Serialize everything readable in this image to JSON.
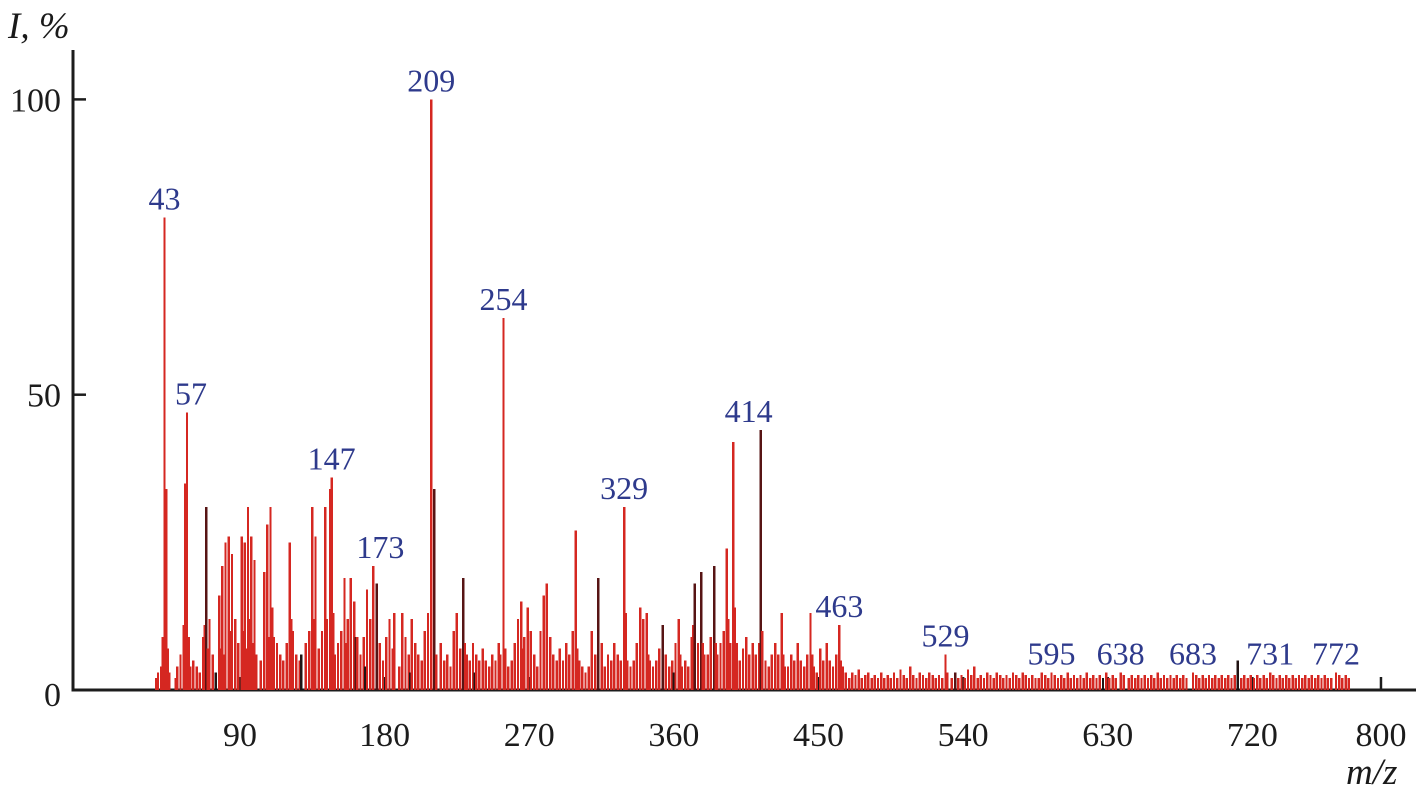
{
  "chart_data": {
    "type": "bar",
    "title": "",
    "xlabel": "m/z",
    "ylabel": "I, %",
    "xlim": [
      0,
      800
    ],
    "ylim": [
      0,
      100
    ],
    "grid": false,
    "x_ticks": [
      90,
      180,
      270,
      360,
      450,
      540,
      630,
      720,
      800
    ],
    "y_ticks": [
      0,
      50,
      100
    ],
    "labeled_peaks": [
      {
        "mz": 43,
        "label": "43"
      },
      {
        "mz": 57,
        "label": "57"
      },
      {
        "mz": 147,
        "label": "147"
      },
      {
        "mz": 173,
        "label": "173"
      },
      {
        "mz": 209,
        "label": "209"
      },
      {
        "mz": 254,
        "label": "254"
      },
      {
        "mz": 329,
        "label": "329"
      },
      {
        "mz": 414,
        "label": "414"
      },
      {
        "mz": 463,
        "label": "463"
      },
      {
        "mz": 529,
        "label": "529"
      },
      {
        "mz": 595,
        "label": "595"
      },
      {
        "mz": 638,
        "label": "638"
      },
      {
        "mz": 683,
        "label": "683"
      },
      {
        "mz": 731,
        "label": "731"
      },
      {
        "mz": 772,
        "label": "772"
      }
    ],
    "peaks": [
      [
        38,
        2
      ],
      [
        39,
        3
      ],
      [
        41,
        4
      ],
      [
        42,
        9
      ],
      [
        43,
        80
      ],
      [
        44,
        34
      ],
      [
        45,
        7
      ],
      [
        46,
        3
      ],
      [
        50,
        2
      ],
      [
        51,
        4
      ],
      [
        53,
        6
      ],
      [
        55,
        11
      ],
      [
        56,
        35
      ],
      [
        57,
        47
      ],
      [
        58,
        9
      ],
      [
        59,
        4
      ],
      [
        61,
        5
      ],
      [
        63,
        4
      ],
      [
        65,
        3
      ],
      [
        67,
        9
      ],
      [
        68,
        11
      ],
      [
        69,
        31,
        "d"
      ],
      [
        70,
        7
      ],
      [
        71,
        12
      ],
      [
        73,
        6
      ],
      [
        75,
        3,
        "k"
      ],
      [
        77,
        16
      ],
      [
        78,
        7
      ],
      [
        79,
        21
      ],
      [
        80,
        6
      ],
      [
        81,
        25
      ],
      [
        83,
        26
      ],
      [
        84,
        10
      ],
      [
        85,
        23
      ],
      [
        87,
        12
      ],
      [
        89,
        8
      ],
      [
        91,
        26
      ],
      [
        92,
        10
      ],
      [
        93,
        25
      ],
      [
        94,
        7
      ],
      [
        95,
        31
      ],
      [
        96,
        12
      ],
      [
        97,
        26
      ],
      [
        98,
        8
      ],
      [
        99,
        22
      ],
      [
        100,
        6
      ],
      [
        103,
        5
      ],
      [
        105,
        20
      ],
      [
        107,
        28
      ],
      [
        108,
        9
      ],
      [
        109,
        31
      ],
      [
        110,
        14
      ],
      [
        111,
        9
      ],
      [
        113,
        8
      ],
      [
        115,
        6
      ],
      [
        117,
        5
      ],
      [
        119,
        8
      ],
      [
        121,
        25
      ],
      [
        122,
        12
      ],
      [
        123,
        10
      ],
      [
        125,
        6
      ],
      [
        127,
        5
      ],
      [
        128,
        6,
        "k"
      ],
      [
        131,
        8
      ],
      [
        133,
        10
      ],
      [
        135,
        31
      ],
      [
        136,
        12
      ],
      [
        137,
        26
      ],
      [
        139,
        7
      ],
      [
        141,
        10
      ],
      [
        143,
        31
      ],
      [
        144,
        12
      ],
      [
        146,
        34
      ],
      [
        147,
        36
      ],
      [
        148,
        13
      ],
      [
        149,
        6
      ],
      [
        151,
        8
      ],
      [
        153,
        10
      ],
      [
        155,
        19
      ],
      [
        156,
        8
      ],
      [
        157,
        12
      ],
      [
        159,
        19
      ],
      [
        161,
        15
      ],
      [
        162,
        9,
        "d"
      ],
      [
        163,
        9
      ],
      [
        165,
        6
      ],
      [
        167,
        9
      ],
      [
        168,
        4,
        "k"
      ],
      [
        169,
        17
      ],
      [
        171,
        12
      ],
      [
        173,
        21
      ],
      [
        175,
        18,
        "d"
      ],
      [
        177,
        8
      ],
      [
        179,
        5
      ],
      [
        181,
        9
      ],
      [
        183,
        12
      ],
      [
        185,
        7
      ],
      [
        186,
        13
      ],
      [
        189,
        4
      ],
      [
        191,
        13
      ],
      [
        193,
        9
      ],
      [
        195,
        6
      ],
      [
        196,
        3,
        "k"
      ],
      [
        197,
        12
      ],
      [
        199,
        8
      ],
      [
        201,
        6
      ],
      [
        203,
        5
      ],
      [
        205,
        10
      ],
      [
        207,
        13
      ],
      [
        209,
        100
      ],
      [
        211,
        34,
        "d"
      ],
      [
        212,
        6
      ],
      [
        215,
        8
      ],
      [
        217,
        5
      ],
      [
        219,
        6
      ],
      [
        221,
        4
      ],
      [
        223,
        10
      ],
      [
        225,
        13
      ],
      [
        227,
        7
      ],
      [
        229,
        19,
        "d"
      ],
      [
        230,
        8
      ],
      [
        231,
        6
      ],
      [
        233,
        5
      ],
      [
        235,
        8
      ],
      [
        236,
        3,
        "k"
      ],
      [
        237,
        6
      ],
      [
        239,
        5
      ],
      [
        241,
        7
      ],
      [
        243,
        5
      ],
      [
        245,
        4
      ],
      [
        247,
        6
      ],
      [
        249,
        5
      ],
      [
        251,
        8
      ],
      [
        252,
        6
      ],
      [
        254,
        63
      ],
      [
        255,
        7
      ],
      [
        257,
        4
      ],
      [
        259,
        5
      ],
      [
        261,
        8
      ],
      [
        263,
        12
      ],
      [
        265,
        15
      ],
      [
        266,
        7
      ],
      [
        267,
        9
      ],
      [
        269,
        14
      ],
      [
        271,
        10
      ],
      [
        273,
        6
      ],
      [
        275,
        4
      ],
      [
        277,
        10
      ],
      [
        279,
        16
      ],
      [
        281,
        18
      ],
      [
        283,
        9
      ],
      [
        285,
        6
      ],
      [
        287,
        5
      ],
      [
        289,
        7
      ],
      [
        291,
        5
      ],
      [
        293,
        8
      ],
      [
        295,
        6
      ],
      [
        297,
        10
      ],
      [
        299,
        27
      ],
      [
        300,
        7
      ],
      [
        301,
        5
      ],
      [
        303,
        4
      ],
      [
        305,
        3
      ],
      [
        307,
        4
      ],
      [
        309,
        10
      ],
      [
        311,
        6
      ],
      [
        313,
        19,
        "d"
      ],
      [
        315,
        8
      ],
      [
        317,
        4
      ],
      [
        319,
        6
      ],
      [
        321,
        5
      ],
      [
        323,
        8
      ],
      [
        325,
        6
      ],
      [
        327,
        5
      ],
      [
        329,
        31
      ],
      [
        330,
        13
      ],
      [
        331,
        5
      ],
      [
        333,
        4
      ],
      [
        335,
        5
      ],
      [
        337,
        8
      ],
      [
        339,
        14
      ],
      [
        341,
        12
      ],
      [
        343,
        13
      ],
      [
        344,
        6
      ],
      [
        345,
        5
      ],
      [
        347,
        4
      ],
      [
        349,
        5
      ],
      [
        351,
        7
      ],
      [
        353,
        11,
        "d"
      ],
      [
        355,
        6
      ],
      [
        357,
        4
      ],
      [
        359,
        5
      ],
      [
        360,
        3,
        "k"
      ],
      [
        361,
        8
      ],
      [
        363,
        12
      ],
      [
        364,
        6
      ],
      [
        365,
        4
      ],
      [
        367,
        5
      ],
      [
        369,
        4
      ],
      [
        371,
        9
      ],
      [
        372,
        11
      ],
      [
        373,
        18,
        "d"
      ],
      [
        375,
        8
      ],
      [
        377,
        20,
        "d"
      ],
      [
        378,
        8
      ],
      [
        379,
        6
      ],
      [
        381,
        6
      ],
      [
        383,
        9
      ],
      [
        385,
        21,
        "d"
      ],
      [
        386,
        8
      ],
      [
        387,
        6
      ],
      [
        389,
        8
      ],
      [
        391,
        10
      ],
      [
        393,
        24
      ],
      [
        394,
        12
      ],
      [
        395,
        8
      ],
      [
        397,
        42
      ],
      [
        398,
        14
      ],
      [
        399,
        8
      ],
      [
        401,
        5
      ],
      [
        403,
        7
      ],
      [
        405,
        9
      ],
      [
        407,
        6
      ],
      [
        409,
        8
      ],
      [
        411,
        6
      ],
      [
        413,
        8
      ],
      [
        414,
        44,
        "d"
      ],
      [
        415,
        10
      ],
      [
        417,
        5
      ],
      [
        419,
        4
      ],
      [
        421,
        6
      ],
      [
        423,
        8
      ],
      [
        425,
        6
      ],
      [
        427,
        13
      ],
      [
        428,
        6
      ],
      [
        429,
        4
      ],
      [
        431,
        4
      ],
      [
        433,
        6
      ],
      [
        435,
        5
      ],
      [
        437,
        8
      ],
      [
        439,
        5
      ],
      [
        441,
        4
      ],
      [
        443,
        6
      ],
      [
        445,
        13
      ],
      [
        446,
        6
      ],
      [
        447,
        4
      ],
      [
        449,
        3
      ],
      [
        451,
        7
      ],
      [
        453,
        5
      ],
      [
        455,
        8
      ],
      [
        457,
        5
      ],
      [
        459,
        4
      ],
      [
        461,
        6
      ],
      [
        463,
        11
      ],
      [
        464,
        5
      ],
      [
        465,
        4
      ],
      [
        467,
        3
      ],
      [
        469,
        2
      ],
      [
        471,
        3
      ],
      [
        473,
        2.5
      ],
      [
        475,
        3.5
      ],
      [
        477,
        2
      ],
      [
        479,
        2.5
      ],
      [
        481,
        3
      ],
      [
        483,
        2
      ],
      [
        485,
        2.5
      ],
      [
        487,
        2
      ],
      [
        489,
        3
      ],
      [
        491,
        2
      ],
      [
        493,
        2.5
      ],
      [
        495,
        2
      ],
      [
        497,
        3
      ],
      [
        499,
        2
      ],
      [
        501,
        3.5
      ],
      [
        503,
        2.5
      ],
      [
        505,
        2
      ],
      [
        507,
        4
      ],
      [
        509,
        2.5
      ],
      [
        511,
        2
      ],
      [
        513,
        3
      ],
      [
        515,
        2.5
      ],
      [
        517,
        2
      ],
      [
        519,
        3
      ],
      [
        521,
        2.5
      ],
      [
        523,
        2
      ],
      [
        525,
        2.5
      ],
      [
        527,
        2
      ],
      [
        529,
        6
      ],
      [
        530,
        3
      ],
      [
        533,
        2
      ],
      [
        535,
        3,
        "d"
      ],
      [
        537,
        2
      ],
      [
        539,
        2.5
      ],
      [
        541,
        2
      ],
      [
        543,
        3.5
      ],
      [
        545,
        2.5
      ],
      [
        547,
        4
      ],
      [
        549,
        2
      ],
      [
        551,
        2.5
      ],
      [
        553,
        2
      ],
      [
        555,
        3
      ],
      [
        557,
        2.5
      ],
      [
        559,
        2
      ],
      [
        561,
        3
      ],
      [
        563,
        2.5
      ],
      [
        565,
        2
      ],
      [
        567,
        2.5
      ],
      [
        569,
        2
      ],
      [
        571,
        3
      ],
      [
        573,
        2.5
      ],
      [
        575,
        2
      ],
      [
        577,
        3
      ],
      [
        579,
        2.5
      ],
      [
        581,
        2
      ],
      [
        583,
        2.5
      ],
      [
        585,
        2
      ],
      [
        587,
        2
      ],
      [
        589,
        3
      ],
      [
        591,
        2.5
      ],
      [
        593,
        2
      ],
      [
        595,
        3
      ],
      [
        597,
        2.5
      ],
      [
        599,
        2
      ],
      [
        601,
        2.5
      ],
      [
        603,
        2
      ],
      [
        605,
        3
      ],
      [
        607,
        2
      ],
      [
        609,
        2.5
      ],
      [
        611,
        2
      ],
      [
        613,
        2.5
      ],
      [
        615,
        2
      ],
      [
        617,
        3
      ],
      [
        619,
        2
      ],
      [
        621,
        2.5
      ],
      [
        623,
        2
      ],
      [
        625,
        2.5
      ],
      [
        627,
        2,
        "k"
      ],
      [
        629,
        3
      ],
      [
        631,
        2
      ],
      [
        633,
        2.5
      ],
      [
        635,
        2
      ],
      [
        638,
        3
      ],
      [
        640,
        2.5
      ],
      [
        643,
        2
      ],
      [
        645,
        2.5
      ],
      [
        647,
        2
      ],
      [
        649,
        2.5
      ],
      [
        651,
        2
      ],
      [
        653,
        2.5
      ],
      [
        655,
        2
      ],
      [
        657,
        2.5
      ],
      [
        659,
        2
      ],
      [
        661,
        3
      ],
      [
        663,
        2
      ],
      [
        665,
        2.5
      ],
      [
        667,
        2
      ],
      [
        669,
        2.5
      ],
      [
        671,
        2
      ],
      [
        673,
        2.5
      ],
      [
        675,
        2
      ],
      [
        677,
        2.5
      ],
      [
        679,
        2
      ],
      [
        683,
        3
      ],
      [
        685,
        2.5
      ],
      [
        687,
        2
      ],
      [
        689,
        2.5
      ],
      [
        691,
        2
      ],
      [
        693,
        2.5
      ],
      [
        695,
        2
      ],
      [
        697,
        2.5
      ],
      [
        699,
        2
      ],
      [
        701,
        2.5
      ],
      [
        703,
        2
      ],
      [
        705,
        2.5
      ],
      [
        707,
        2
      ],
      [
        709,
        2.5
      ],
      [
        711,
        5,
        "k"
      ],
      [
        713,
        2
      ],
      [
        715,
        2.5
      ],
      [
        717,
        2
      ],
      [
        719,
        2.5
      ],
      [
        721,
        2
      ],
      [
        723,
        2.5
      ],
      [
        725,
        2
      ],
      [
        727,
        2.5
      ],
      [
        729,
        2
      ],
      [
        731,
        3
      ],
      [
        733,
        2.5
      ],
      [
        735,
        2
      ],
      [
        737,
        2.5
      ],
      [
        739,
        2
      ],
      [
        741,
        2.5
      ],
      [
        743,
        2
      ],
      [
        745,
        2.5
      ],
      [
        747,
        2
      ],
      [
        749,
        2.5
      ],
      [
        751,
        2
      ],
      [
        753,
        2.5
      ],
      [
        755,
        2
      ],
      [
        757,
        2.5
      ],
      [
        759,
        2
      ],
      [
        761,
        2.5
      ],
      [
        763,
        2
      ],
      [
        765,
        2.5
      ],
      [
        767,
        2
      ],
      [
        769,
        2
      ],
      [
        772,
        3
      ],
      [
        774,
        2.5
      ],
      [
        776,
        2
      ],
      [
        778,
        2.5
      ],
      [
        780,
        2
      ]
    ],
    "legend": null
  },
  "colors": {
    "background": "#ffffff",
    "axis": "#1c1c1c",
    "bar_red": "#d52721",
    "bar_dark": "#571414",
    "bar_black": "#201313",
    "peak_label_blue": "#2e3a8c"
  },
  "labels": {
    "y_axis": "I, %",
    "x_axis": "m/z"
  }
}
